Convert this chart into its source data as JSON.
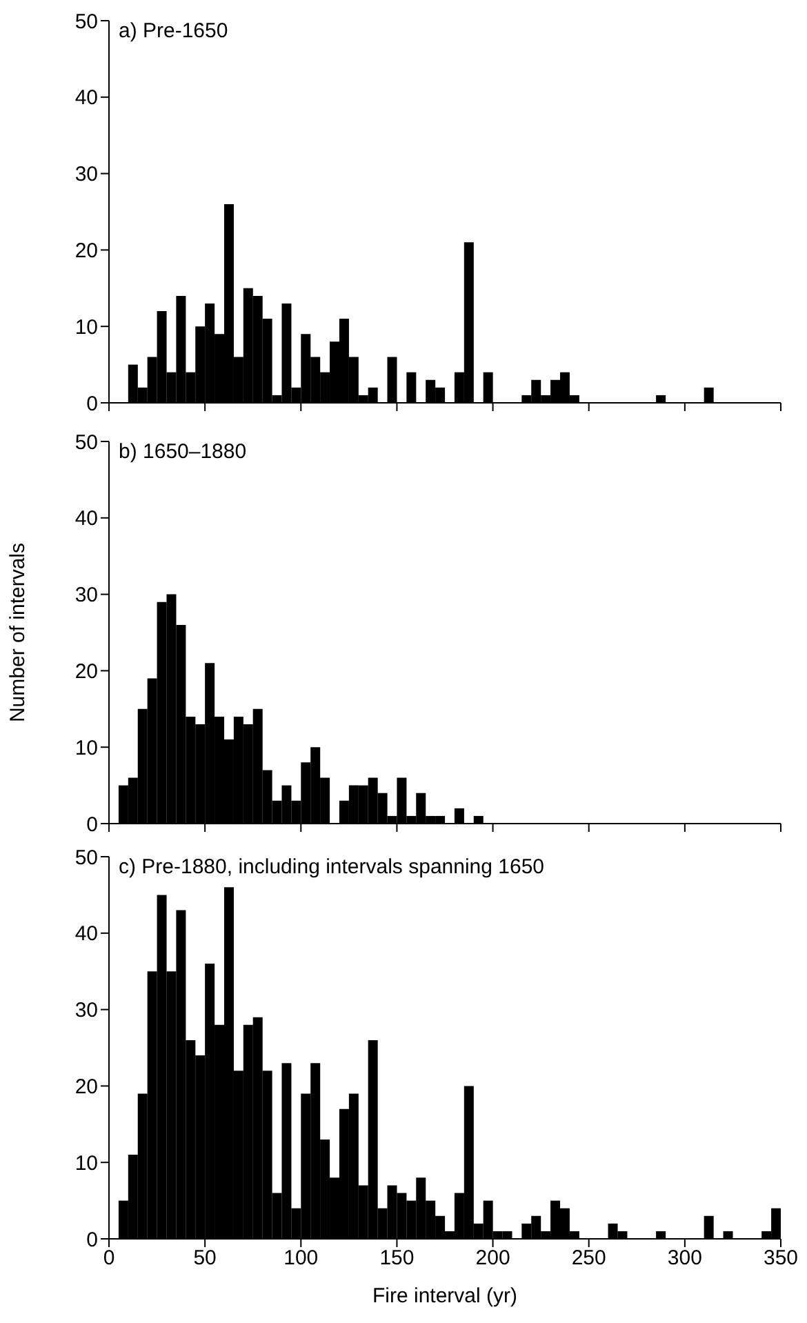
{
  "chart_data": [
    {
      "type": "histogram",
      "title": "a) Pre-1650",
      "color": "#000000",
      "xlim": [
        0,
        350
      ],
      "xticks": [
        0,
        50,
        100,
        150,
        200,
        250,
        300,
        350
      ],
      "ylim": [
        0,
        50
      ],
      "yticks": [
        0,
        10,
        20,
        30,
        40,
        50
      ],
      "tick_labels": "y",
      "bins": [
        0,
        5,
        10,
        15,
        20,
        25,
        30,
        35,
        40,
        45,
        50,
        55,
        60,
        65,
        70,
        75,
        80,
        85,
        90,
        95,
        100,
        105,
        110,
        115,
        120,
        125,
        130,
        135,
        140,
        145,
        150,
        155,
        160,
        165,
        170,
        175,
        180,
        185,
        190,
        195,
        200,
        205,
        210,
        215,
        220,
        225,
        230,
        235,
        240,
        245,
        250,
        255,
        260,
        265,
        270,
        275,
        280,
        285,
        290,
        295,
        300,
        305,
        310,
        315,
        320,
        325,
        330,
        335,
        340,
        345,
        350
      ],
      "values": [
        0,
        0,
        5,
        2,
        6,
        12,
        4,
        14,
        4,
        10,
        13,
        9,
        26,
        6,
        15,
        14,
        11,
        1,
        13,
        2,
        9,
        6,
        4,
        8,
        11,
        6,
        1,
        2,
        0,
        6,
        0,
        4,
        0,
        3,
        2,
        0,
        4,
        21,
        0,
        4,
        0,
        0,
        0,
        1,
        3,
        1,
        3,
        4,
        1,
        0,
        0,
        0,
        0,
        0,
        0,
        0,
        0,
        1,
        0,
        0,
        0,
        0,
        2,
        0,
        0,
        0,
        0,
        0,
        0,
        0
      ]
    },
    {
      "type": "histogram",
      "title": "b) 1650–1880",
      "ylabel": "Number of intervals",
      "color": "#000000",
      "xlim": [
        0,
        350
      ],
      "xticks": [
        0,
        50,
        100,
        150,
        200,
        250,
        300,
        350
      ],
      "ylim": [
        0,
        50
      ],
      "yticks": [
        0,
        10,
        20,
        30,
        40,
        50
      ],
      "tick_labels": "y",
      "bins": [
        0,
        5,
        10,
        15,
        20,
        25,
        30,
        35,
        40,
        45,
        50,
        55,
        60,
        65,
        70,
        75,
        80,
        85,
        90,
        95,
        100,
        105,
        110,
        115,
        120,
        125,
        130,
        135,
        140,
        145,
        150,
        155,
        160,
        165,
        170,
        175,
        180,
        185,
        190,
        195,
        200,
        205,
        210,
        215,
        220,
        225,
        230,
        235,
        240,
        245,
        250,
        255,
        260,
        265,
        270,
        275,
        280,
        285,
        290,
        295,
        300,
        305,
        310,
        315,
        320,
        325,
        330,
        335,
        340,
        345,
        350
      ],
      "values": [
        0,
        5,
        6,
        15,
        19,
        29,
        30,
        26,
        14,
        13,
        21,
        14,
        11,
        14,
        13,
        15,
        7,
        3,
        5,
        3,
        8,
        10,
        6,
        0,
        3,
        5,
        5,
        6,
        4,
        1,
        6,
        1,
        4,
        1,
        1,
        0,
        2,
        0,
        1,
        0,
        0,
        0,
        0,
        0,
        0,
        0,
        0,
        0,
        0,
        0,
        0,
        0,
        0,
        0,
        0,
        0,
        0,
        0,
        0,
        0,
        0,
        0,
        0,
        0,
        0,
        0,
        0,
        0,
        0,
        0
      ]
    },
    {
      "type": "histogram",
      "title": "c) Pre-1880, including intervals spanning 1650",
      "xlabel": "Fire interval (yr)",
      "color": "#000000",
      "xlim": [
        0,
        350
      ],
      "xticks": [
        0,
        50,
        100,
        150,
        200,
        250,
        300,
        350
      ],
      "ylim": [
        0,
        50
      ],
      "yticks": [
        0,
        10,
        20,
        30,
        40,
        50
      ],
      "bins": [
        0,
        5,
        10,
        15,
        20,
        25,
        30,
        35,
        40,
        45,
        50,
        55,
        60,
        65,
        70,
        75,
        80,
        85,
        90,
        95,
        100,
        105,
        110,
        115,
        120,
        125,
        130,
        135,
        140,
        145,
        150,
        155,
        160,
        165,
        170,
        175,
        180,
        185,
        190,
        195,
        200,
        205,
        210,
        215,
        220,
        225,
        230,
        235,
        240,
        245,
        250,
        255,
        260,
        265,
        270,
        275,
        280,
        285,
        290,
        295,
        300,
        305,
        310,
        315,
        320,
        325,
        330,
        335,
        340,
        345,
        350
      ],
      "values": [
        0,
        5,
        11,
        19,
        35,
        45,
        35,
        43,
        26,
        24,
        36,
        28,
        46,
        22,
        28,
        29,
        22,
        6,
        23,
        4,
        19,
        23,
        13,
        8,
        17,
        19,
        7,
        26,
        4,
        7,
        6,
        5,
        8,
        5,
        3,
        1,
        6,
        20,
        2,
        5,
        1,
        1,
        0,
        2,
        3,
        1,
        5,
        4,
        1,
        0,
        0,
        0,
        2,
        1,
        0,
        0,
        0,
        1,
        0,
        0,
        0,
        0,
        3,
        0,
        1,
        0,
        0,
        0,
        1,
        4
      ]
    }
  ]
}
